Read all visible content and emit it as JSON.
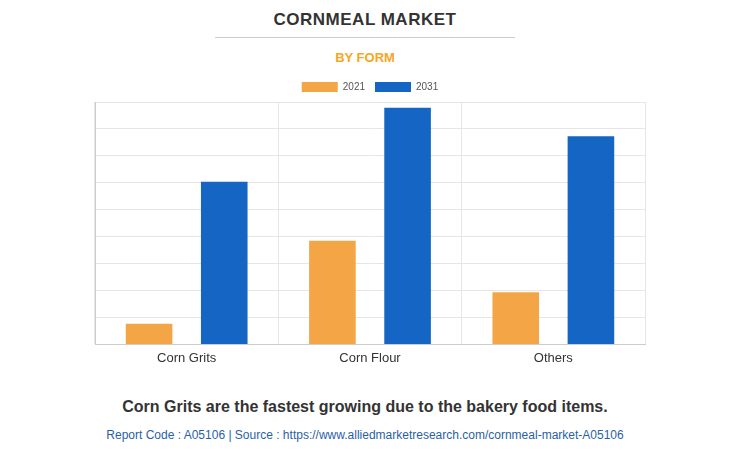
{
  "chart_data": {
    "type": "bar",
    "title": "CORNMEAL MARKET",
    "subtitle": "BY FORM",
    "categories": [
      "Corn Grits",
      "Corn Flour",
      "Others"
    ],
    "series": [
      {
        "name": "2021",
        "color": "#f4a647",
        "values": [
          0.77,
          3.85,
          1.94
        ]
      },
      {
        "name": "2031",
        "color": "#1565c4",
        "values": [
          6.04,
          8.79,
          7.73
        ]
      }
    ],
    "ylim": [
      0,
      9
    ],
    "yticks": [
      0,
      1,
      2,
      3,
      4,
      5,
      6,
      7,
      8,
      9
    ],
    "grid": true,
    "legend": "top",
    "tick_labels": "x",
    "annotations": [
      "Corn Grits are the fastest growing due to the bakery food items.",
      "Report Code : A05106  |  Source : https://www.alliedmarketresearch.com/cornmeal-market-A05106"
    ]
  }
}
